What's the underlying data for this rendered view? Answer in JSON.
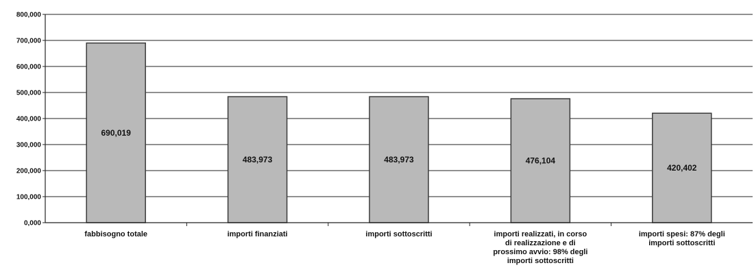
{
  "chart_data": {
    "type": "bar",
    "title": "",
    "xlabel": "",
    "ylabel": "",
    "ylim": [
      0,
      800000
    ],
    "yticks": [
      0,
      100000,
      200000,
      300000,
      400000,
      500000,
      600000,
      700000,
      800000
    ],
    "ytick_labels": [
      "0,000",
      "100,000",
      "200,000",
      "300,000",
      "400,000",
      "500,000",
      "600,000",
      "700,000",
      "800,000"
    ],
    "grid": true,
    "legend": "none",
    "categories": [
      "fabbisogno totale",
      "importi finanziati",
      "importi sottoscritti",
      "importi realizzati, in corso di realizzazione e di prossimo avvio: 98% degli importi sottoscritti",
      "importi spesi: 87% degli importi sottoscritti"
    ],
    "category_label_lines": [
      [
        "fabbisogno totale"
      ],
      [
        "importi finanziati"
      ],
      [
        "importi sottoscritti"
      ],
      [
        "importi realizzati, in corso",
        "di realizzazione e di",
        "prossimo avvio: 98% degli",
        "importi sottoscritti"
      ],
      [
        "importi spesi: 87% degli",
        "importi sottoscritti"
      ]
    ],
    "values": [
      690019,
      483973,
      483973,
      476104,
      420402
    ],
    "value_labels": [
      "690,019",
      "483,973",
      "483,973",
      "476,104",
      "420,402"
    ],
    "colors": {
      "bar_fill": "#b9b9b9",
      "bar_stroke": "#3a3a3a",
      "grid": "#222222",
      "axis": "#222222"
    }
  }
}
